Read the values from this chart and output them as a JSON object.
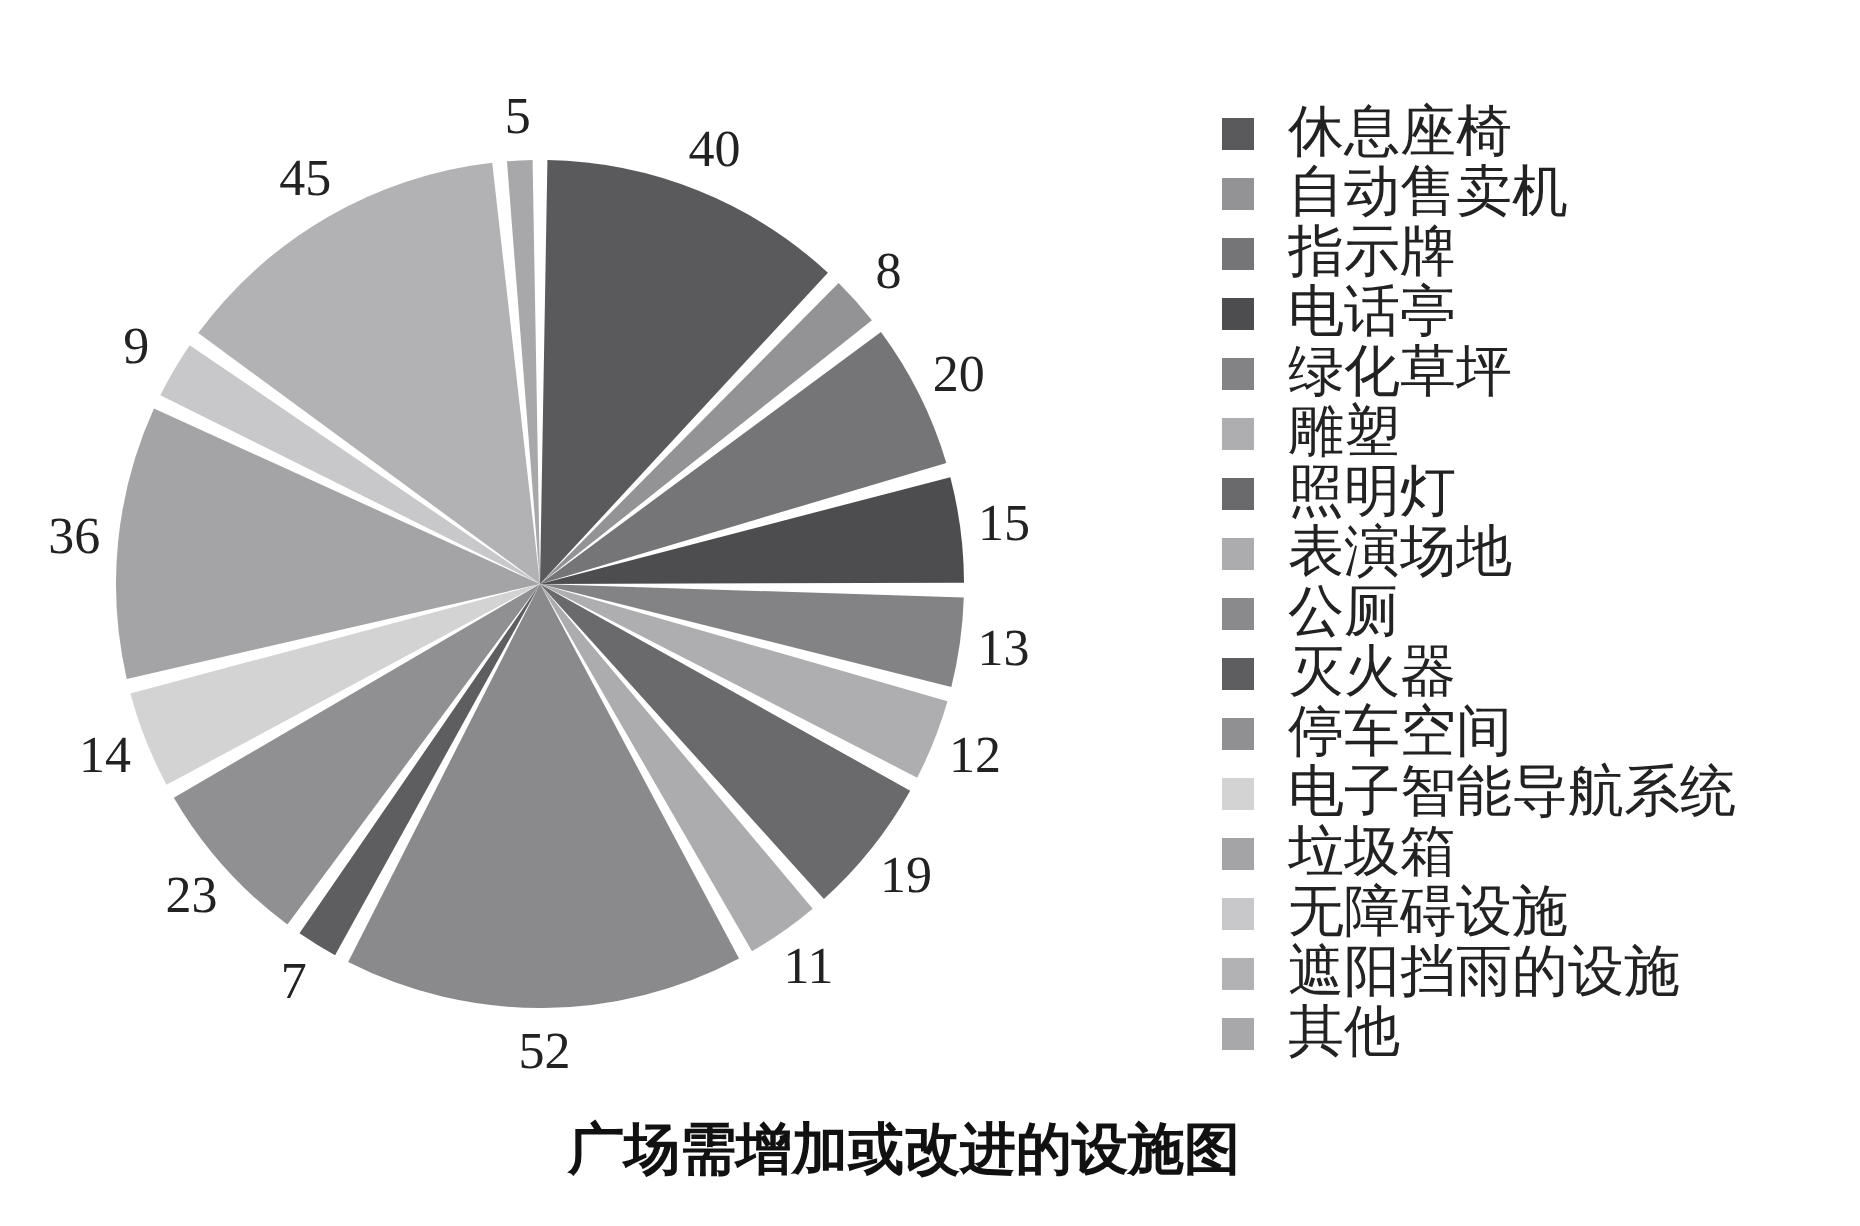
{
  "chart_data": {
    "type": "pie",
    "title": "广场需增加或改进的设施图",
    "categories": [
      "休息座椅",
      "自动售卖机",
      "指示牌",
      "电话亭",
      "绿化草坪",
      "雕塑",
      "照明灯",
      "表演场地",
      "公厕",
      "灭火器",
      "停车空间",
      "电子智能导航系统",
      "垃圾箱",
      "无障碍设施",
      "遮阳挡雨的设施",
      "其他"
    ],
    "values": [
      40,
      8,
      20,
      15,
      13,
      12,
      19,
      11,
      52,
      7,
      23,
      14,
      36,
      9,
      45,
      5
    ],
    "colors": [
      "#5a5a5c",
      "#939396",
      "#757578",
      "#4d4d4f",
      "#838386",
      "#aeaeb0",
      "#6a6a6d",
      "#acacae",
      "#8a8a8d",
      "#5e5e60",
      "#909093",
      "#d3d3d4",
      "#a4a4a7",
      "#c8c8ca",
      "#b2b2b4",
      "#a8a8aa"
    ],
    "data_labels": true,
    "legend": "right"
  }
}
